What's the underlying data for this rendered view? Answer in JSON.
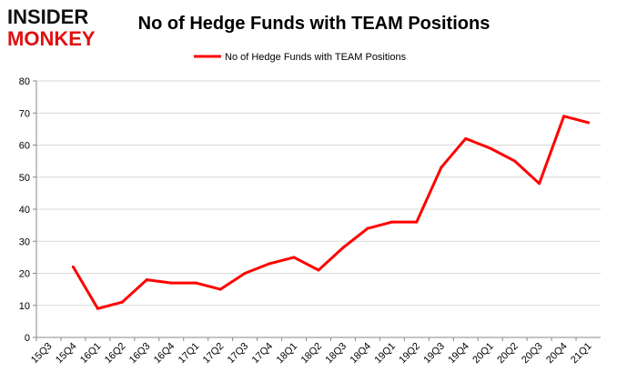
{
  "logo": {
    "line1": "INSIDER",
    "line2": "MONKEY",
    "color": "#e01010"
  },
  "chart_data": {
    "type": "line",
    "title": "No of Hedge Funds with TEAM Positions",
    "xlabel": "",
    "ylabel": "",
    "categories": [
      "15Q3",
      "15Q4",
      "16Q1",
      "16Q2",
      "16Q3",
      "16Q4",
      "17Q1",
      "17Q2",
      "17Q3",
      "17Q4",
      "18Q1",
      "18Q2",
      "18Q3",
      "18Q4",
      "19Q1",
      "19Q2",
      "19Q3",
      "19Q4",
      "20Q1",
      "20Q2",
      "20Q3",
      "20Q4",
      "21Q1"
    ],
    "series": [
      {
        "name": "No of Hedge Funds with TEAM Positions",
        "color": "#ff0000",
        "values": [
          null,
          22,
          9,
          11,
          18,
          17,
          17,
          15,
          20,
          23,
          25,
          21,
          28,
          34,
          36,
          36,
          53,
          62,
          59,
          55,
          48,
          69,
          67
        ]
      }
    ],
    "ylim": [
      0,
      80
    ],
    "yticks": [
      0,
      10,
      20,
      30,
      40,
      50,
      60,
      70,
      80
    ],
    "grid": true,
    "legend": "top-center"
  }
}
